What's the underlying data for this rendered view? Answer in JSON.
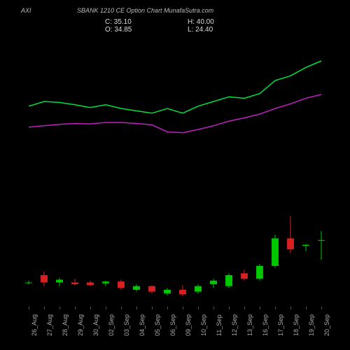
{
  "header": {
    "left_label": "AXI",
    "main_title": "SBANK 1210 CE Option Chart MunafaSutra.com",
    "c_label": "C:",
    "c_value": "35.10",
    "o_label": "O:",
    "o_value": "34.85",
    "h_label": "H:",
    "h_value": "40.00",
    "l_label": "L:",
    "l_value": "24.40"
  },
  "chart": {
    "type": "candlestick_with_lines",
    "background_color": "#000000",
    "up_color": "#00c800",
    "down_color": "#d82020",
    "line_colors": [
      "#00e040",
      "#c020c0"
    ],
    "x_labels": [
      "26_Aug",
      "27_Aug",
      "28_Aug",
      "29_Aug",
      "30_Aug",
      "02_Sep",
      "03_Sep",
      "04_Sep",
      "05_Sep",
      "06_Sep",
      "09_Sep",
      "10_Sep",
      "11_Sep",
      "12_Sep",
      "13_Sep",
      "16_Sep",
      "17_Sep",
      "18_Sep",
      "19_Sep",
      "20_Sep"
    ],
    "ylim_candles": [
      0,
      80
    ],
    "ylim_lines": [
      1060,
      1300
    ],
    "candles": [
      {
        "o": 12.0,
        "h": 13.0,
        "l": 11.0,
        "c": 12.0
      },
      {
        "o": 16.0,
        "h": 18.0,
        "l": 10.0,
        "c": 12.0
      },
      {
        "o": 12.0,
        "h": 14.5,
        "l": 10.0,
        "c": 13.5
      },
      {
        "o": 12.0,
        "h": 14.0,
        "l": 10.5,
        "c": 11.0
      },
      {
        "o": 12.0,
        "h": 13.0,
        "l": 10.0,
        "c": 10.5
      },
      {
        "o": 11.5,
        "h": 13.0,
        "l": 10.0,
        "c": 12.5
      },
      {
        "o": 12.5,
        "h": 13.5,
        "l": 8.0,
        "c": 9.0
      },
      {
        "o": 8.0,
        "h": 11.0,
        "l": 7.0,
        "c": 10.0
      },
      {
        "o": 10.0,
        "h": 10.5,
        "l": 6.0,
        "c": 7.0
      },
      {
        "o": 6.0,
        "h": 9.0,
        "l": 5.0,
        "c": 8.0
      },
      {
        "o": 8.0,
        "h": 10.5,
        "l": 4.5,
        "c": 5.5
      },
      {
        "o": 7.0,
        "h": 11.0,
        "l": 6.0,
        "c": 10.0
      },
      {
        "o": 11.0,
        "h": 14.0,
        "l": 9.0,
        "c": 13.0
      },
      {
        "o": 10.0,
        "h": 17.0,
        "l": 9.0,
        "c": 16.0
      },
      {
        "o": 17.0,
        "h": 19.0,
        "l": 13.0,
        "c": 14.0
      },
      {
        "o": 14.0,
        "h": 22.0,
        "l": 13.0,
        "c": 21.0
      },
      {
        "o": 21.0,
        "h": 38.0,
        "l": 20.0,
        "c": 36.0
      },
      {
        "o": 36.0,
        "h": 48.0,
        "l": 28.0,
        "c": 30.0
      },
      {
        "o": 32.0,
        "h": 33.0,
        "l": 29.0,
        "c": 32.5
      },
      {
        "o": 34.85,
        "h": 40.0,
        "l": 24.4,
        "c": 35.1
      }
    ],
    "line1_values": [
      1155,
      1165,
      1163,
      1158,
      1152,
      1158,
      1150,
      1145,
      1140,
      1150,
      1140,
      1155,
      1165,
      1175,
      1172,
      1182,
      1210,
      1220,
      1238,
      1252
    ],
    "line2_values": [
      1110,
      1113,
      1116,
      1118,
      1117,
      1120,
      1120,
      1118,
      1115,
      1100,
      1098,
      1105,
      1113,
      1123,
      1130,
      1138,
      1150,
      1160,
      1172,
      1180
    ]
  }
}
